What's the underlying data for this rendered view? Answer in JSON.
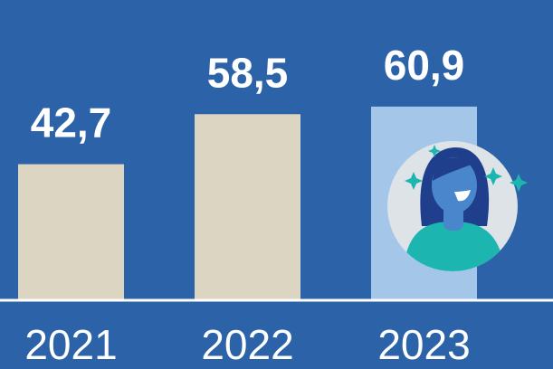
{
  "chart_data": {
    "type": "bar",
    "categories": [
      "2021",
      "2022",
      "2023"
    ],
    "values": [
      42.7,
      58.5,
      60.9
    ],
    "value_labels": [
      "42,7",
      "58,5",
      "60,9"
    ],
    "colors": [
      "#dcd5c1",
      "#dcd5c1",
      "#a4c7e9"
    ],
    "background": "#2b62a8"
  }
}
